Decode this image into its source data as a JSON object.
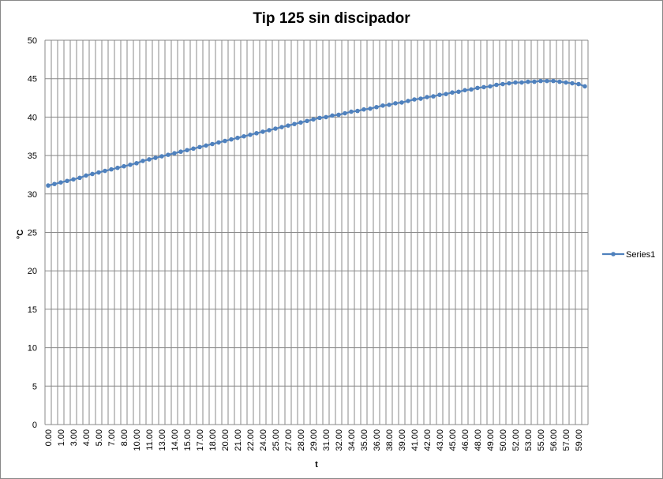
{
  "chart_data": {
    "type": "line",
    "title": "Tip 125 sin discipador",
    "x_label": "t",
    "y_label": "°C",
    "categories": [
      "0.00",
      null,
      "1.00",
      null,
      "3.00",
      null,
      "4.00",
      null,
      "5.00",
      null,
      "7.00",
      null,
      "8.00",
      null,
      "10.00",
      null,
      "11.00",
      null,
      "13.00",
      null,
      "14.00",
      null,
      "15.00",
      null,
      "17.00",
      null,
      "18.00",
      null,
      "20.00",
      null,
      "21.00",
      null,
      "22.00",
      null,
      "24.00",
      null,
      "25.00",
      null,
      "27.00",
      null,
      "28.00",
      null,
      "29.00",
      null,
      "31.00",
      null,
      "32.00",
      null,
      "34.00",
      null,
      "35.00",
      null,
      "36.00",
      null,
      "38.00",
      null,
      "39.00",
      null,
      "41.00",
      null,
      "42.00",
      null,
      "43.00",
      null,
      "45.00",
      null,
      "46.00",
      null,
      "48.00",
      null,
      "49.00",
      null,
      "50.00",
      null,
      "52.00",
      null,
      "53.00",
      null,
      "55.00",
      null,
      "56.00",
      null,
      "57.00",
      null,
      "59.00",
      null
    ],
    "series": [
      {
        "name": "Series1",
        "color": "#4f81bd",
        "values": [
          31.1,
          31.3,
          31.5,
          31.7,
          31.9,
          32.1,
          32.4,
          32.6,
          32.8,
          33.0,
          33.2,
          33.4,
          33.6,
          33.8,
          34.0,
          34.3,
          34.5,
          34.7,
          34.9,
          35.1,
          35.3,
          35.5,
          35.7,
          35.9,
          36.1,
          36.3,
          36.5,
          36.7,
          36.9,
          37.1,
          37.3,
          37.5,
          37.7,
          37.9,
          38.1,
          38.3,
          38.5,
          38.7,
          38.9,
          39.1,
          39.3,
          39.5,
          39.7,
          39.9,
          40.0,
          40.2,
          40.3,
          40.5,
          40.7,
          40.8,
          41.0,
          41.1,
          41.3,
          41.5,
          41.6,
          41.8,
          41.9,
          42.1,
          42.3,
          42.4,
          42.6,
          42.7,
          42.9,
          43.0,
          43.2,
          43.3,
          43.5,
          43.6,
          43.8,
          43.9,
          44.0,
          44.2,
          44.3,
          44.4,
          44.5,
          44.5,
          44.6,
          44.6,
          44.7,
          44.7,
          44.7,
          44.6,
          44.5,
          44.4,
          44.3,
          44.0
        ]
      }
    ],
    "ylim": [
      0,
      50
    ],
    "yticks": [
      0,
      5,
      10,
      15,
      20,
      25,
      30,
      35,
      40,
      45,
      50
    ],
    "grid": true,
    "legend": "right"
  }
}
